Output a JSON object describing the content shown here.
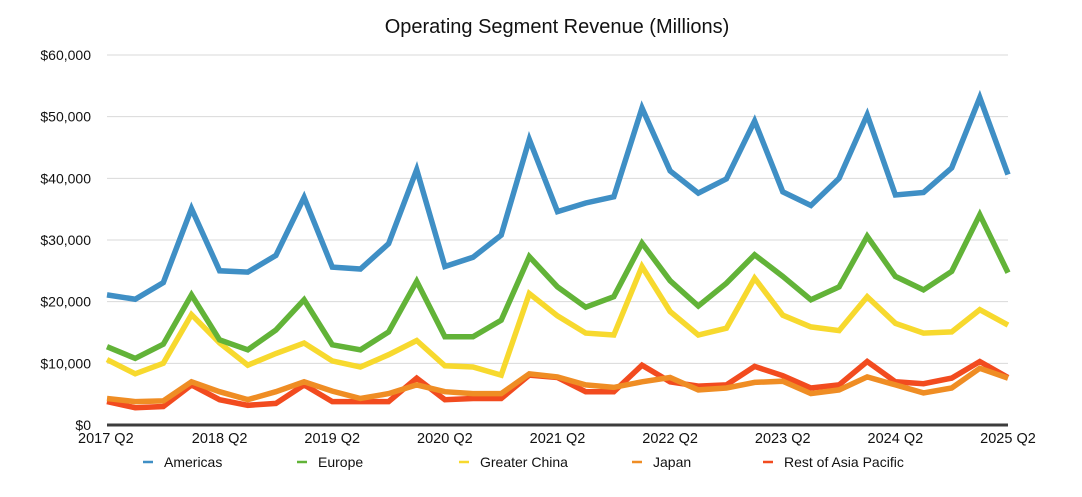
{
  "chart_data": {
    "type": "line",
    "title": "Operating Segment Revenue (Millions)",
    "xlabel": "",
    "ylabel": "",
    "ylim": [
      0,
      60000
    ],
    "yticks": [
      0,
      10000,
      20000,
      30000,
      40000,
      50000,
      60000
    ],
    "ytick_labels": [
      "$0",
      "$10,000",
      "$20,000",
      "$30,000",
      "$40,000",
      "$50,000",
      "$60,000"
    ],
    "grid": true,
    "legend_position": "bottom",
    "x": [
      "2017 Q2",
      "2017 Q3",
      "2017 Q4",
      "2018 Q1",
      "2018 Q2",
      "2018 Q3",
      "2018 Q4",
      "2019 Q1",
      "2019 Q2",
      "2019 Q3",
      "2019 Q4",
      "2020 Q1",
      "2020 Q2",
      "2020 Q3",
      "2020 Q4",
      "2021 Q1",
      "2021 Q2",
      "2021 Q3",
      "2021 Q4",
      "2022 Q1",
      "2022 Q2",
      "2022 Q3",
      "2022 Q4",
      "2023 Q1",
      "2023 Q2",
      "2023 Q3",
      "2023 Q4",
      "2024 Q1",
      "2024 Q2",
      "2024 Q3",
      "2024 Q4",
      "2025 Q1",
      "2025 Q2"
    ],
    "xtick_labels": [
      "2017 Q2",
      "2018 Q2",
      "2019 Q2",
      "2020 Q2",
      "2021 Q2",
      "2022 Q2",
      "2023 Q2",
      "2024 Q2",
      "2025 Q2"
    ],
    "series": [
      {
        "name": "Americas",
        "color": "#3f8fc5",
        "values": [
          21100,
          20400,
          23100,
          35100,
          25000,
          24800,
          27500,
          36900,
          25600,
          25300,
          29400,
          41400,
          25700,
          27200,
          30800,
          46300,
          34600,
          36000,
          37000,
          51400,
          41200,
          37600,
          39900,
          49300,
          37800,
          35600,
          40000,
          50300,
          37300,
          37700,
          41700,
          53100,
          40600
        ]
      },
      {
        "name": "Europe",
        "color": "#62b338",
        "values": [
          12700,
          10800,
          13100,
          21100,
          13800,
          12200,
          15400,
          20300,
          13000,
          12200,
          15100,
          23300,
          14300,
          14300,
          17000,
          27300,
          22400,
          19100,
          20800,
          29500,
          23400,
          19300,
          23000,
          27600,
          24100,
          20300,
          22400,
          30600,
          24100,
          21900,
          24900,
          34100,
          24700
        ]
      },
      {
        "name": "Greater China",
        "color": "#f7d92e",
        "values": [
          10600,
          8300,
          10000,
          17900,
          13300,
          9700,
          11600,
          13300,
          10400,
          9400,
          11400,
          13700,
          9600,
          9400,
          8100,
          21300,
          17700,
          14900,
          14600,
          25700,
          18400,
          14600,
          15700,
          23800,
          17800,
          15900,
          15300,
          20800,
          16500,
          14900,
          15100,
          18700,
          16200
        ]
      },
      {
        "name": "Japan",
        "color": "#ef8d24",
        "values": [
          4300,
          3800,
          3900,
          7000,
          5400,
          4100,
          5400,
          7000,
          5500,
          4300,
          5100,
          6500,
          5400,
          5100,
          5100,
          8300,
          7800,
          6500,
          6100,
          7000,
          7700,
          5700,
          6000,
          6900,
          7100,
          5100,
          5700,
          7800,
          6500,
          5200,
          6000,
          9200,
          7600
        ]
      },
      {
        "name": "Rest of Asia Pacific",
        "color": "#f24b1f",
        "values": [
          3800,
          2800,
          3000,
          6500,
          4100,
          3200,
          3500,
          6500,
          3800,
          3800,
          3800,
          7600,
          4100,
          4300,
          4300,
          8100,
          7700,
          5400,
          5400,
          9700,
          7000,
          6300,
          6500,
          9500,
          8000,
          6000,
          6500,
          10300,
          7000,
          6700,
          7600,
          10300,
          7700
        ]
      }
    ]
  }
}
